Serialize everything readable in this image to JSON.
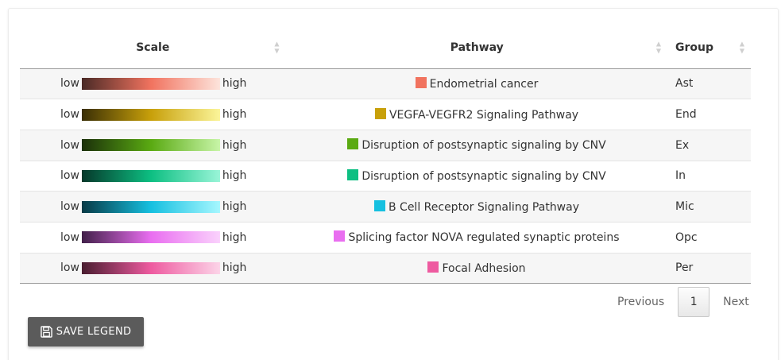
{
  "table": {
    "headers": {
      "scale": "Scale",
      "pathway": "Pathway",
      "group": "Group"
    },
    "rows": [
      {
        "low": "low",
        "high": "high",
        "pathway": "Endometrial cancer",
        "group": "Ast",
        "color": "#f1735f",
        "gradient": [
          "#4a2a26",
          "#f1735f",
          "#fde4dc"
        ]
      },
      {
        "low": "low",
        "high": "high",
        "pathway": "VEGFA-VEGFR2 Signaling Pathway",
        "group": "End",
        "color": "#c8a00a",
        "gradient": [
          "#3a2f06",
          "#c8a00a",
          "#fbf59a"
        ]
      },
      {
        "low": "low",
        "high": "high",
        "pathway": "Disruption of postsynaptic signaling by CNV",
        "group": "Ex",
        "color": "#5aaa12",
        "gradient": [
          "#1b300a",
          "#5aaa12",
          "#c8f5a8"
        ]
      },
      {
        "low": "low",
        "high": "high",
        "pathway": "Disruption of postsynaptic signaling by CNV",
        "group": "In",
        "color": "#0dbf82",
        "gradient": [
          "#06382a",
          "#0dbf82",
          "#9af5d8"
        ]
      },
      {
        "low": "low",
        "high": "high",
        "pathway": "B Cell Receptor Signaling Pathway",
        "group": "Mic",
        "color": "#16c0e0",
        "gradient": [
          "#083a46",
          "#16c0e0",
          "#a6f7ff"
        ]
      },
      {
        "low": "low",
        "high": "high",
        "pathway": "Splicing factor NOVA regulated synaptic proteins",
        "group": "Opc",
        "color": "#e96ef0",
        "gradient": [
          "#42204a",
          "#e96ef0",
          "#fad2fc"
        ]
      },
      {
        "low": "low",
        "high": "high",
        "pathway": "Focal Adhesion",
        "group": "Per",
        "color": "#ee5ba0",
        "gradient": [
          "#4a1d30",
          "#ee5ba0",
          "#fcd4e8"
        ]
      }
    ]
  },
  "pagination": {
    "previous": "Previous",
    "current": "1",
    "next": "Next"
  },
  "save_button": {
    "label": "SAVE LEGEND",
    "icon": "floppy-disk-icon"
  }
}
